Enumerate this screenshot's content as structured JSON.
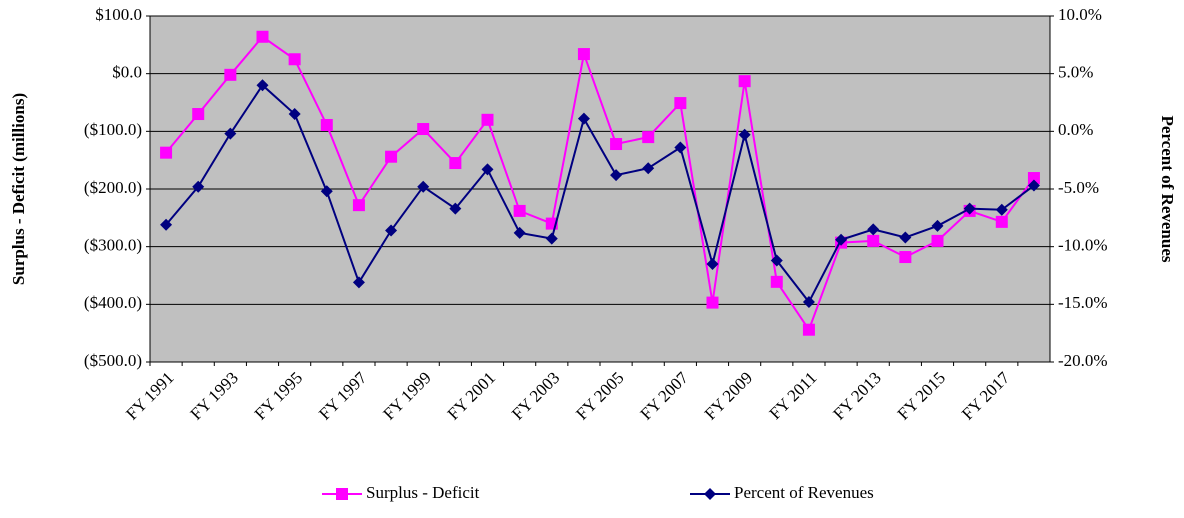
{
  "chart_data": {
    "type": "line",
    "y_label": "Surplus - Deficit (millions)",
    "y2_label": "Percent of Revenues",
    "categories": [
      "FY 1991",
      null,
      "FY 1993",
      null,
      "FY 1995",
      null,
      "FY 1997",
      null,
      "FY 1999",
      null,
      "FY 2001",
      null,
      "FY 2003",
      null,
      "FY 2005",
      null,
      "FY 2007",
      null,
      "FY 2009",
      null,
      "FY 2011",
      null,
      "FY 2013",
      null,
      "FY 2015",
      null,
      "FY 2017",
      null
    ],
    "series": [
      {
        "name": "Surplus - Deficit",
        "color": "#ff00ff",
        "marker": "square",
        "values": [
          -137,
          -70,
          -2,
          64,
          25,
          -89,
          -228,
          -144,
          -96,
          -155,
          -80,
          -238,
          -260,
          34,
          -122,
          -110,
          -51,
          -397,
          -13,
          -361,
          -444,
          -293,
          -290,
          -318,
          -290,
          -238,
          -257,
          -181
        ]
      },
      {
        "name": "Percent of Revenues",
        "color": "#000080",
        "marker": "diamond",
        "axis": "y2",
        "values": [
          -8.1,
          -4.8,
          -0.2,
          4.0,
          1.5,
          -5.2,
          -13.1,
          -8.6,
          -4.8,
          -6.7,
          -3.3,
          -8.8,
          -9.3,
          1.1,
          -3.8,
          -3.2,
          -1.4,
          -11.5,
          -0.3,
          -11.2,
          -14.8,
          -9.4,
          -8.5,
          -9.2,
          -8.2,
          -6.7,
          -6.8,
          -4.7
        ]
      }
    ],
    "ylim": [
      -500,
      100
    ],
    "yticks": [
      {
        "value": 100,
        "label": "$100.0"
      },
      {
        "value": 0,
        "label": "$0.0"
      },
      {
        "value": -100,
        "label": "($100.0)"
      },
      {
        "value": -200,
        "label": "($200.0)"
      },
      {
        "value": -300,
        "label": "($300.0)"
      },
      {
        "value": -400,
        "label": "($400.0)"
      },
      {
        "value": -500,
        "label": "($500.0)"
      }
    ],
    "y2lim": [
      -20,
      10
    ],
    "y2ticks": [
      {
        "value": 10,
        "label": "10.0%"
      },
      {
        "value": 5,
        "label": "5.0%"
      },
      {
        "value": 0,
        "label": "0.0%"
      },
      {
        "value": -5,
        "label": "-5.0%"
      },
      {
        "value": -10,
        "label": "-10.0%"
      },
      {
        "value": -15,
        "label": "-15.0%"
      },
      {
        "value": -20,
        "label": "-20.0%"
      }
    ],
    "grid": true,
    "plot_background": "#c0c0c0",
    "legend": "bottom"
  }
}
